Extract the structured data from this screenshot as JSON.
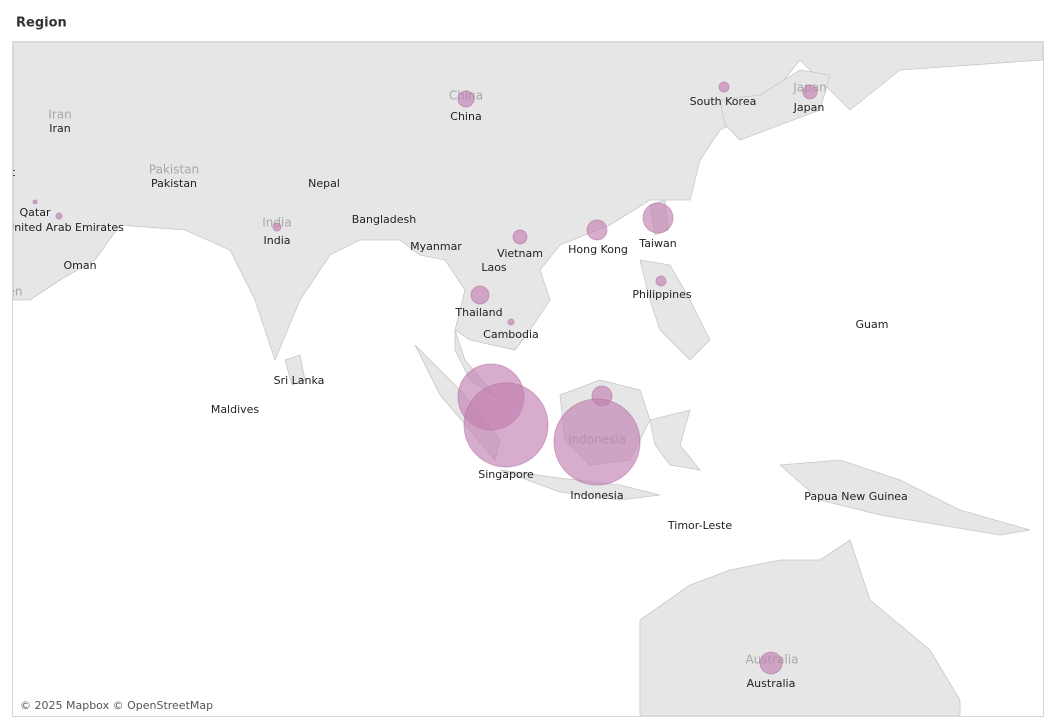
{
  "title": "Region",
  "attribution": "© 2025 Mapbox © OpenStreetMap",
  "base_labels": [
    "Iran",
    "Pakistan",
    "India",
    "China",
    "Japan",
    "Indonesia",
    "Australia",
    "en"
  ],
  "places": [
    {
      "label": "China",
      "value": 64
    },
    {
      "label": "South Korea",
      "value": 25
    },
    {
      "label": "Japan",
      "value": 49
    },
    {
      "label": "Kuwait",
      "value": null
    },
    {
      "label": "Qatar",
      "value": 4
    },
    {
      "label": "United Arab Emirates",
      "value": 9
    },
    {
      "label": "Iran",
      "value": null
    },
    {
      "label": "Pakistan",
      "value": null
    },
    {
      "label": "Nepal",
      "value": null
    },
    {
      "label": "India",
      "value": 16
    },
    {
      "label": "Oman",
      "value": null
    },
    {
      "label": "Bangladesh",
      "value": null
    },
    {
      "label": "Myanmar",
      "value": null
    },
    {
      "label": "Vietnam",
      "value": 49
    },
    {
      "label": "Laos",
      "value": null
    },
    {
      "label": "Hong Kong",
      "value": 100
    },
    {
      "label": "Taiwan",
      "value": 225
    },
    {
      "label": "Philippines",
      "value": 25
    },
    {
      "label": "Thailand",
      "value": 81
    },
    {
      "label": "Cambodia",
      "value": 9
    },
    {
      "label": "Guam",
      "value": null
    },
    {
      "label": "Sri Lanka",
      "value": null
    },
    {
      "label": "Maldives",
      "value": null
    },
    {
      "label": null,
      "value": 1089
    },
    {
      "label": "Singapore",
      "value": 1764
    },
    {
      "label": null,
      "value": 100
    },
    {
      "label": "Indonesia",
      "value": 1849
    },
    {
      "label": "Timor-Leste",
      "value": null
    },
    {
      "label": "Papua New Guinea",
      "value": null
    },
    {
      "label": "Australia",
      "value": 121
    }
  ]
}
